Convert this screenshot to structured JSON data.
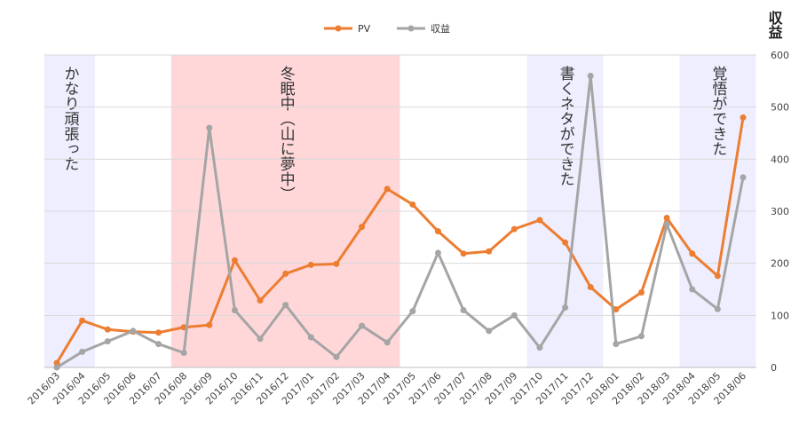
{
  "chart_data": {
    "type": "line",
    "x": [
      "2016/03",
      "2016/04",
      "2016/05",
      "2016/06",
      "2016/07",
      "2016/08",
      "2016/09",
      "2016/10",
      "2016/11",
      "2016/12",
      "2017/01",
      "2017/02",
      "2017/03",
      "2017/04",
      "2017/05",
      "2017/06",
      "2017/07",
      "2017/08",
      "2017/09",
      "2017/10",
      "2017/11",
      "2017/12",
      "2018/01",
      "2018/02",
      "2018/03",
      "2018/04",
      "2018/05",
      "2018/06"
    ],
    "series": [
      {
        "name": "PV",
        "color": "#ED7D31",
        "axis": "left",
        "values": [
          10,
          105,
          85,
          80,
          78,
          90,
          95,
          240,
          150,
          210,
          230,
          232,
          315,
          400,
          365,
          305,
          255,
          260,
          310,
          330,
          280,
          180,
          130,
          168,
          335,
          255,
          205,
          560
        ]
      },
      {
        "name": "収益",
        "color": "#A5A5A5",
        "axis": "right",
        "values": [
          0,
          30,
          50,
          70,
          45,
          28,
          460,
          110,
          55,
          120,
          58,
          20,
          80,
          48,
          108,
          220,
          110,
          70,
          100,
          38,
          115,
          560,
          45,
          60,
          275,
          150,
          112,
          365
        ]
      }
    ],
    "y_left_range": [
      0,
      700
    ],
    "y_right_range": [
      0,
      600
    ],
    "y_right_ticks": [
      "0",
      "100",
      "200",
      "300",
      "400",
      "500",
      "600"
    ],
    "ylabel_right": "収益",
    "legend_position": "top",
    "grid": true,
    "annotations": [
      {
        "label": "かなり頑張った",
        "from": "2016/03",
        "to": "2016/04",
        "color": "#EEEEFF"
      },
      {
        "label": "冬眠中（山に夢中）",
        "from": "2016/08",
        "to": "2017/04",
        "color": "#FFD7D9"
      },
      {
        "label": "書くネタができた",
        "from": "2017/10",
        "to": "2017/12",
        "color": "#EEEEFF"
      },
      {
        "label": "覚悟ができた",
        "from": "2018/04",
        "to": "2018/06",
        "color": "#EEEEFF"
      }
    ]
  }
}
